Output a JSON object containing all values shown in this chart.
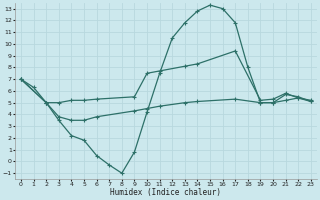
{
  "background_color": "#cce8ed",
  "grid_color": "#b8d8de",
  "line_color": "#2d7068",
  "xlabel": "Humidex (Indice chaleur)",
  "xlim": [
    -0.5,
    23.5
  ],
  "ylim": [
    -1.5,
    13.5
  ],
  "xticks": [
    0,
    1,
    2,
    3,
    4,
    5,
    6,
    7,
    8,
    9,
    10,
    11,
    12,
    13,
    14,
    15,
    16,
    17,
    18,
    19,
    20,
    21,
    22,
    23
  ],
  "yticks": [
    -1,
    0,
    1,
    2,
    3,
    4,
    5,
    6,
    7,
    8,
    9,
    10,
    11,
    12,
    13
  ],
  "series1_x": [
    0,
    2,
    3,
    4,
    5,
    6,
    9,
    10,
    11,
    13,
    14,
    17,
    19,
    20,
    21,
    22,
    23
  ],
  "series1_y": [
    7.0,
    5.0,
    5.0,
    5.2,
    5.2,
    5.3,
    5.5,
    7.5,
    7.7,
    8.1,
    8.3,
    9.4,
    5.2,
    5.3,
    5.8,
    5.4,
    5.2
  ],
  "series2_x": [
    0,
    1,
    2,
    3,
    4,
    5,
    6,
    7,
    8,
    9,
    10,
    11,
    12,
    13,
    14,
    15,
    16,
    17,
    18,
    19,
    20,
    21,
    22,
    23
  ],
  "series2_y": [
    7.0,
    6.3,
    5.0,
    3.5,
    2.2,
    1.8,
    0.5,
    -0.3,
    -1.0,
    0.8,
    4.2,
    7.5,
    10.5,
    11.8,
    12.8,
    13.3,
    13.0,
    11.8,
    8.0,
    5.0,
    5.0,
    5.7,
    5.5,
    5.1
  ],
  "series3_x": [
    0,
    2,
    3,
    4,
    5,
    6,
    9,
    10,
    11,
    13,
    14,
    17,
    19,
    20,
    21,
    22,
    23
  ],
  "series3_y": [
    7.0,
    5.0,
    3.8,
    3.5,
    3.5,
    3.8,
    4.3,
    4.5,
    4.7,
    5.0,
    5.1,
    5.3,
    5.0,
    5.0,
    5.2,
    5.4,
    5.1
  ]
}
